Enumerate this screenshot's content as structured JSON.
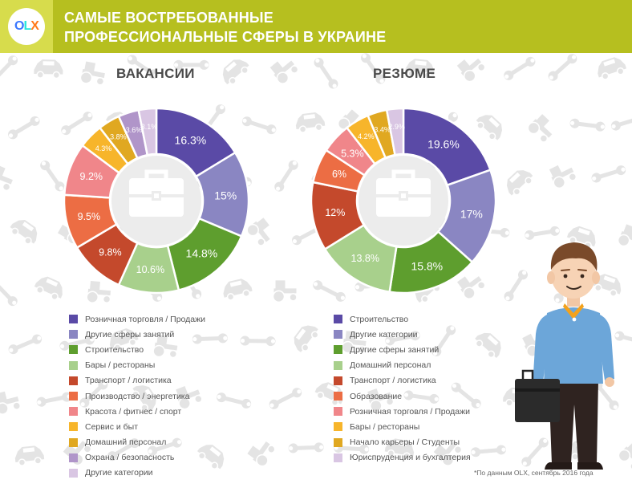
{
  "header": {
    "logo_text": "OLX",
    "logo_letters": [
      "O",
      "L",
      "X"
    ],
    "logo_colors": [
      "#3a77ff",
      "#23e5db",
      "#ff7a1a"
    ],
    "title_line_1": "САМЫЕ ВОСТРЕБОВАННЫЕ",
    "title_line_2": "ПРОФЕССИОНАЛЬНЫЕ СФЕРЫ В УКРАИНЕ"
  },
  "colors": {
    "header_green": "#b6bf1f",
    "logo_box": "#d7dc4c",
    "text_dark": "#4a4a4a"
  },
  "icons": {
    "center_icon": "briefcase-icon",
    "background": "tools-cars-pattern",
    "illustration": "businessman-with-briefcase"
  },
  "chart_data": [
    {
      "type": "pie",
      "title": "ВАКАНСИИ",
      "variant": "donut",
      "legend_position": "bottom",
      "labels": [
        "Розничная торговля / Продажи",
        "Другие сферы занятий",
        "Строительство",
        "Бары / рестораны",
        "Транспорт / логистика",
        "Производство / энергетика",
        "Красота / фитнес / спорт",
        "Сервис и быт",
        "Домашний персонал",
        "Охрана / безопасность",
        "Другие категории"
      ],
      "values": [
        16.3,
        15,
        14.8,
        10.6,
        9.8,
        9.5,
        9.2,
        4.3,
        3.8,
        3.6,
        3.1
      ],
      "value_labels": [
        "16.3%",
        "15%",
        "14.8%",
        "10.6%",
        "9.8%",
        "9.5%",
        "9.2%",
        "4.3%",
        "3.8%",
        "3.6%",
        "3.1%"
      ],
      "colors": [
        "#5a4aa6",
        "#8a86c2",
        "#5e9e2e",
        "#a8d08c",
        "#c4492c",
        "#ec6d44",
        "#f0868a",
        "#f7b52b",
        "#e0a821",
        "#b095c9",
        "#d9c6e3"
      ]
    },
    {
      "type": "pie",
      "title": "РЕЗЮМЕ",
      "variant": "donut",
      "legend_position": "bottom",
      "labels": [
        "Строительство",
        "Другие категории",
        "Другие сферы занятий",
        "Домашний персонал",
        "Транспорт / логистика",
        "Образование",
        "Розничная торговля / Продажи",
        "Бары / рестораны",
        "Начало карьеры / Студенты",
        "Юриспруденция и бухгалтерия"
      ],
      "values": [
        19.6,
        17,
        15.8,
        13.8,
        12,
        6,
        5.3,
        4.2,
        3.4,
        2.9
      ],
      "value_labels": [
        "19.6%",
        "17%",
        "15.8%",
        "13.8%",
        "12%",
        "6%",
        "5.3%",
        "4.2%",
        "3.4%",
        "2.9%"
      ],
      "colors": [
        "#5a4aa6",
        "#8a86c2",
        "#5e9e2e",
        "#a8d08c",
        "#c4492c",
        "#ec6d44",
        "#f0868a",
        "#f7b52b",
        "#e0a821",
        "#d9c6e3"
      ]
    }
  ],
  "source_note": "*По данным OLX, сентябрь 2016 года"
}
